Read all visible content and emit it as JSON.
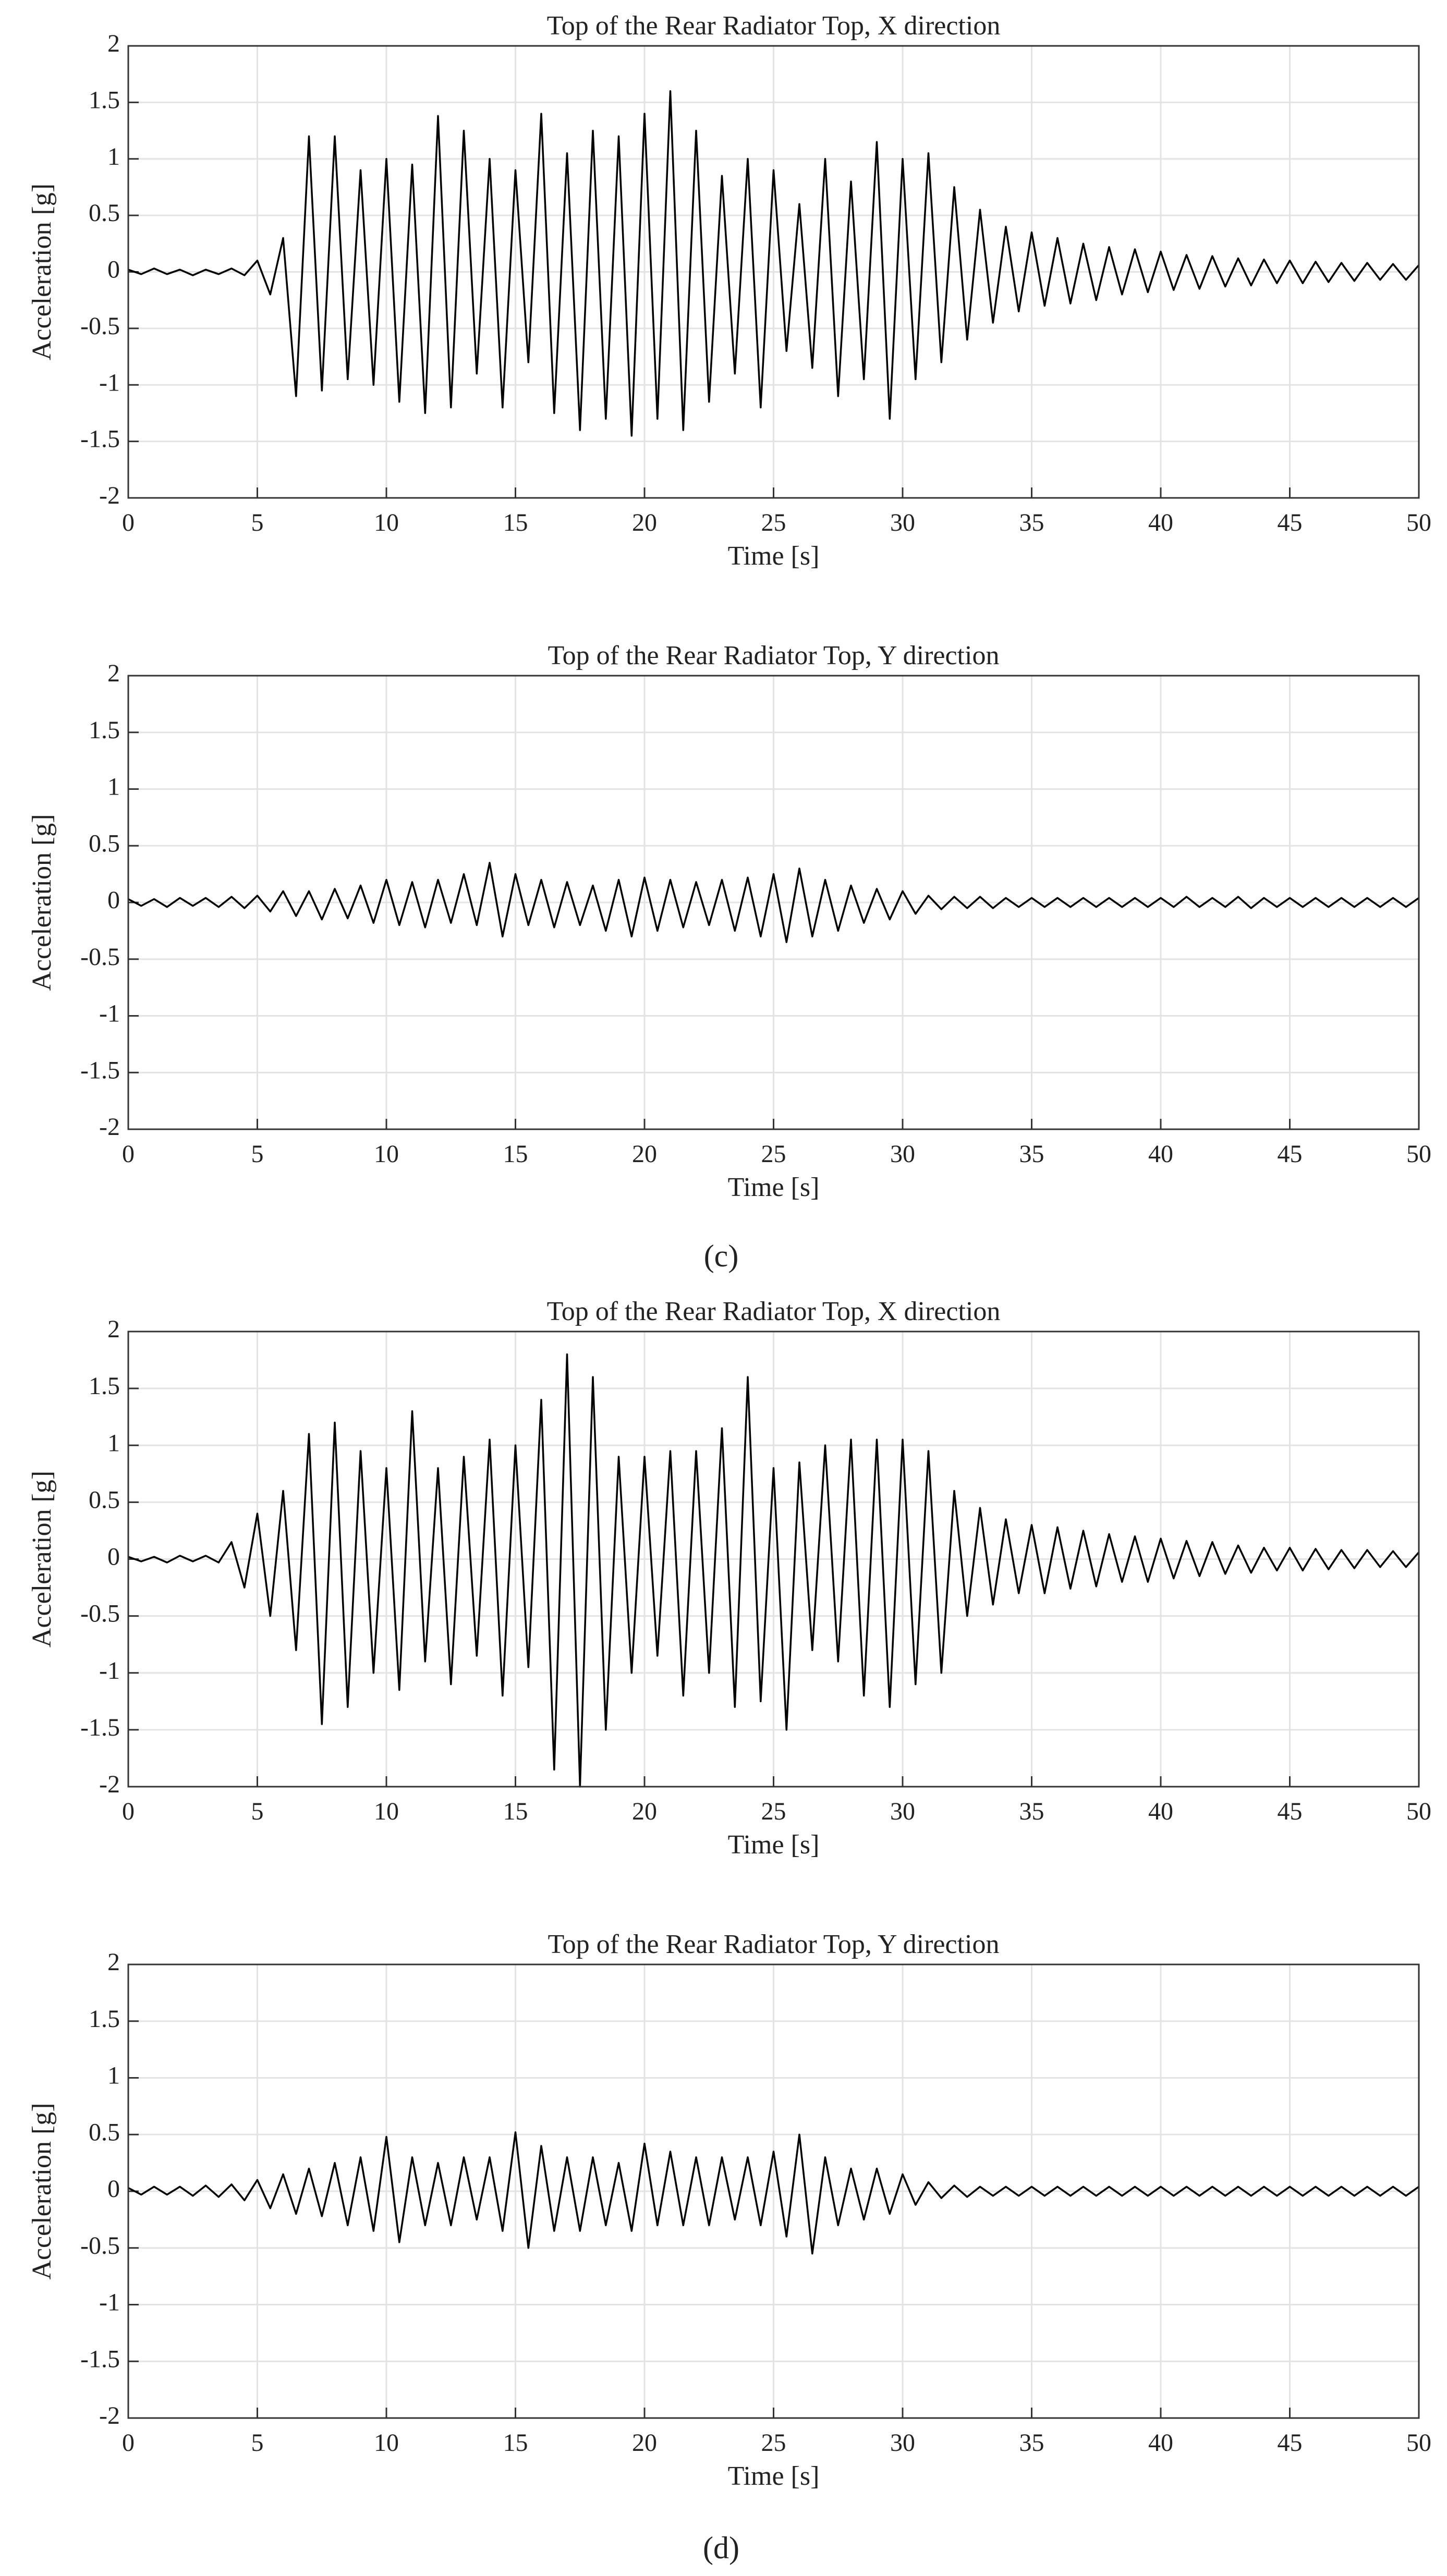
{
  "chart_data": [
    {
      "type": "line",
      "title": "Top of the Rear Radiator Top, X direction",
      "xlabel": "Time [s]",
      "ylabel": "Acceleration [g]",
      "x": [
        0,
        0.5,
        1,
        1.5,
        2,
        2.5,
        3,
        3.5,
        4,
        4.5,
        5,
        5.5,
        6,
        6.5,
        7,
        7.5,
        8,
        8.5,
        9,
        9.5,
        10,
        10.5,
        11,
        11.5,
        12,
        12.5,
        13,
        13.5,
        14,
        14.5,
        15,
        15.5,
        16,
        16.5,
        17,
        17.5,
        18,
        18.5,
        19,
        19.5,
        20,
        20.5,
        21,
        21.5,
        22,
        22.5,
        23,
        23.5,
        24,
        24.5,
        25,
        25.5,
        26,
        26.5,
        27,
        27.5,
        28,
        28.5,
        29,
        29.5,
        30,
        30.5,
        31,
        31.5,
        32,
        32.5,
        33,
        33.5,
        34,
        34.5,
        35,
        35.5,
        36,
        36.5,
        37,
        37.5,
        38,
        38.5,
        39,
        39.5,
        40,
        40.5,
        41,
        41.5,
        42,
        42.5,
        43,
        43.5,
        44,
        44.5,
        45,
        45.5,
        46,
        46.5,
        47,
        47.5,
        48,
        48.5,
        49,
        49.5,
        50
      ],
      "values": [
        0.02,
        -0.02,
        0.03,
        -0.02,
        0.02,
        -0.03,
        0.02,
        -0.02,
        0.03,
        -0.03,
        0.1,
        -0.2,
        0.3,
        -1.1,
        1.2,
        -1.05,
        1.2,
        -0.95,
        0.9,
        -1.0,
        1.0,
        -1.15,
        0.95,
        -1.25,
        1.38,
        -1.2,
        1.25,
        -0.9,
        1.0,
        -1.2,
        0.9,
        -0.8,
        1.4,
        -1.25,
        1.05,
        -1.4,
        1.25,
        -1.3,
        1.2,
        -1.45,
        1.4,
        -1.3,
        1.6,
        -1.4,
        1.25,
        -1.15,
        0.85,
        -0.9,
        1.0,
        -1.2,
        0.9,
        -0.7,
        0.6,
        -0.85,
        1.0,
        -1.1,
        0.8,
        -0.95,
        1.15,
        -1.3,
        1.0,
        -0.95,
        1.05,
        -0.8,
        0.75,
        -0.6,
        0.55,
        -0.45,
        0.4,
        -0.35,
        0.35,
        -0.3,
        0.3,
        -0.28,
        0.25,
        -0.25,
        0.22,
        -0.2,
        0.2,
        -0.18,
        0.18,
        -0.16,
        0.15,
        -0.15,
        0.14,
        -0.13,
        0.12,
        -0.12,
        0.11,
        -0.1,
        0.1,
        -0.1,
        0.09,
        -0.09,
        0.08,
        -0.08,
        0.08,
        -0.07,
        0.07,
        -0.07,
        0.06
      ],
      "color": "#000000",
      "xlim": [
        0,
        50
      ],
      "ylim": [
        -2,
        2
      ],
      "xticks": [
        0,
        5,
        10,
        15,
        20,
        25,
        30,
        35,
        40,
        45,
        50
      ],
      "yticks": [
        -2,
        -1.5,
        -1,
        -0.5,
        0,
        0.5,
        1,
        1.5,
        2
      ],
      "grid": true
    },
    {
      "type": "line",
      "title": "Top of the Rear Radiator Top, Y direction",
      "xlabel": "Time [s]",
      "ylabel": "Acceleration [g]",
      "x": [
        0,
        0.5,
        1,
        1.5,
        2,
        2.5,
        3,
        3.5,
        4,
        4.5,
        5,
        5.5,
        6,
        6.5,
        7,
        7.5,
        8,
        8.5,
        9,
        9.5,
        10,
        10.5,
        11,
        11.5,
        12,
        12.5,
        13,
        13.5,
        14,
        14.5,
        15,
        15.5,
        16,
        16.5,
        17,
        17.5,
        18,
        18.5,
        19,
        19.5,
        20,
        20.5,
        21,
        21.5,
        22,
        22.5,
        23,
        23.5,
        24,
        24.5,
        25,
        25.5,
        26,
        26.5,
        27,
        27.5,
        28,
        28.5,
        29,
        29.5,
        30,
        30.5,
        31,
        31.5,
        32,
        32.5,
        33,
        33.5,
        34,
        34.5,
        35,
        35.5,
        36,
        36.5,
        37,
        37.5,
        38,
        38.5,
        39,
        39.5,
        40,
        40.5,
        41,
        41.5,
        42,
        42.5,
        43,
        43.5,
        44,
        44.5,
        45,
        45.5,
        46,
        46.5,
        47,
        47.5,
        48,
        48.5,
        49,
        49.5,
        50
      ],
      "values": [
        0.03,
        -0.03,
        0.03,
        -0.04,
        0.04,
        -0.03,
        0.04,
        -0.04,
        0.05,
        -0.05,
        0.06,
        -0.08,
        0.1,
        -0.12,
        0.1,
        -0.15,
        0.12,
        -0.14,
        0.15,
        -0.18,
        0.2,
        -0.2,
        0.18,
        -0.22,
        0.2,
        -0.18,
        0.25,
        -0.2,
        0.35,
        -0.3,
        0.25,
        -0.2,
        0.2,
        -0.22,
        0.18,
        -0.2,
        0.15,
        -0.25,
        0.2,
        -0.3,
        0.22,
        -0.25,
        0.2,
        -0.22,
        0.18,
        -0.2,
        0.2,
        -0.25,
        0.22,
        -0.3,
        0.25,
        -0.35,
        0.3,
        -0.3,
        0.2,
        -0.25,
        0.15,
        -0.18,
        0.12,
        -0.15,
        0.1,
        -0.1,
        0.06,
        -0.06,
        0.05,
        -0.05,
        0.05,
        -0.05,
        0.04,
        -0.04,
        0.04,
        -0.04,
        0.04,
        -0.04,
        0.04,
        -0.04,
        0.04,
        -0.04,
        0.04,
        -0.04,
        0.04,
        -0.04,
        0.05,
        -0.04,
        0.04,
        -0.04,
        0.05,
        -0.05,
        0.04,
        -0.04,
        0.04,
        -0.04,
        0.04,
        -0.04,
        0.04,
        -0.04,
        0.04,
        -0.04,
        0.04,
        -0.04,
        0.04
      ],
      "color": "#000000",
      "xlim": [
        0,
        50
      ],
      "ylim": [
        -2,
        2
      ],
      "xticks": [
        0,
        5,
        10,
        15,
        20,
        25,
        30,
        35,
        40,
        45,
        50
      ],
      "yticks": [
        -2,
        -1.5,
        -1,
        -0.5,
        0,
        0.5,
        1,
        1.5,
        2
      ],
      "grid": true
    },
    {
      "type": "line",
      "title": "Top of the Rear Radiator Top, X direction",
      "xlabel": "Time [s]",
      "ylabel": "Acceleration [g]",
      "x": [
        0,
        0.5,
        1,
        1.5,
        2,
        2.5,
        3,
        3.5,
        4,
        4.5,
        5,
        5.5,
        6,
        6.5,
        7,
        7.5,
        8,
        8.5,
        9,
        9.5,
        10,
        10.5,
        11,
        11.5,
        12,
        12.5,
        13,
        13.5,
        14,
        14.5,
        15,
        15.5,
        16,
        16.5,
        17,
        17.5,
        18,
        18.5,
        19,
        19.5,
        20,
        20.5,
        21,
        21.5,
        22,
        22.5,
        23,
        23.5,
        24,
        24.5,
        25,
        25.5,
        26,
        26.5,
        27,
        27.5,
        28,
        28.5,
        29,
        29.5,
        30,
        30.5,
        31,
        31.5,
        32,
        32.5,
        33,
        33.5,
        34,
        34.5,
        35,
        35.5,
        36,
        36.5,
        37,
        37.5,
        38,
        38.5,
        39,
        39.5,
        40,
        40.5,
        41,
        41.5,
        42,
        42.5,
        43,
        43.5,
        44,
        44.5,
        45,
        45.5,
        46,
        46.5,
        47,
        47.5,
        48,
        48.5,
        49,
        49.5,
        50
      ],
      "values": [
        0.02,
        -0.02,
        0.02,
        -0.03,
        0.03,
        -0.02,
        0.03,
        -0.03,
        0.15,
        -0.25,
        0.4,
        -0.5,
        0.6,
        -0.8,
        1.1,
        -1.45,
        1.2,
        -1.3,
        0.95,
        -1.0,
        0.8,
        -1.15,
        1.3,
        -0.9,
        0.8,
        -1.1,
        0.9,
        -0.85,
        1.05,
        -1.2,
        1.0,
        -0.95,
        1.4,
        -1.85,
        1.8,
        -2.0,
        1.6,
        -1.5,
        0.9,
        -1.0,
        0.9,
        -0.85,
        0.95,
        -1.2,
        0.95,
        -1.0,
        1.15,
        -1.3,
        1.6,
        -1.25,
        0.8,
        -1.5,
        0.85,
        -0.8,
        1.0,
        -0.9,
        1.05,
        -1.2,
        1.05,
        -1.3,
        1.05,
        -1.1,
        0.95,
        -1.0,
        0.6,
        -0.5,
        0.45,
        -0.4,
        0.35,
        -0.3,
        0.3,
        -0.3,
        0.28,
        -0.26,
        0.25,
        -0.24,
        0.22,
        -0.2,
        0.2,
        -0.2,
        0.18,
        -0.17,
        0.16,
        -0.15,
        0.15,
        -0.13,
        0.12,
        -0.12,
        0.1,
        -0.1,
        0.1,
        -0.1,
        0.09,
        -0.09,
        0.08,
        -0.08,
        0.08,
        -0.07,
        0.07,
        -0.07,
        0.06
      ],
      "color": "#000000",
      "xlim": [
        0,
        50
      ],
      "ylim": [
        -2,
        2
      ],
      "xticks": [
        0,
        5,
        10,
        15,
        20,
        25,
        30,
        35,
        40,
        45,
        50
      ],
      "yticks": [
        -2,
        -1.5,
        -1,
        -0.5,
        0,
        0.5,
        1,
        1.5,
        2
      ],
      "grid": true
    },
    {
      "type": "line",
      "title": "Top of the Rear Radiator Top, Y direction",
      "xlabel": "Time [s]",
      "ylabel": "Acceleration [g]",
      "x": [
        0,
        0.5,
        1,
        1.5,
        2,
        2.5,
        3,
        3.5,
        4,
        4.5,
        5,
        5.5,
        6,
        6.5,
        7,
        7.5,
        8,
        8.5,
        9,
        9.5,
        10,
        10.5,
        11,
        11.5,
        12,
        12.5,
        13,
        13.5,
        14,
        14.5,
        15,
        15.5,
        16,
        16.5,
        17,
        17.5,
        18,
        18.5,
        19,
        19.5,
        20,
        20.5,
        21,
        21.5,
        22,
        22.5,
        23,
        23.5,
        24,
        24.5,
        25,
        25.5,
        26,
        26.5,
        27,
        27.5,
        28,
        28.5,
        29,
        29.5,
        30,
        30.5,
        31,
        31.5,
        32,
        32.5,
        33,
        33.5,
        34,
        34.5,
        35,
        35.5,
        36,
        36.5,
        37,
        37.5,
        38,
        38.5,
        39,
        39.5,
        40,
        40.5,
        41,
        41.5,
        42,
        42.5,
        43,
        43.5,
        44,
        44.5,
        45,
        45.5,
        46,
        46.5,
        47,
        47.5,
        48,
        48.5,
        49,
        49.5,
        50
      ],
      "values": [
        0.03,
        -0.03,
        0.04,
        -0.03,
        0.04,
        -0.04,
        0.05,
        -0.05,
        0.06,
        -0.08,
        0.1,
        -0.15,
        0.15,
        -0.2,
        0.2,
        -0.22,
        0.25,
        -0.3,
        0.3,
        -0.35,
        0.48,
        -0.45,
        0.3,
        -0.3,
        0.25,
        -0.3,
        0.3,
        -0.25,
        0.3,
        -0.35,
        0.52,
        -0.5,
        0.4,
        -0.35,
        0.3,
        -0.35,
        0.3,
        -0.3,
        0.25,
        -0.35,
        0.42,
        -0.3,
        0.35,
        -0.3,
        0.3,
        -0.3,
        0.3,
        -0.25,
        0.3,
        -0.3,
        0.35,
        -0.4,
        0.5,
        -0.55,
        0.3,
        -0.3,
        0.2,
        -0.25,
        0.2,
        -0.2,
        0.15,
        -0.12,
        0.08,
        -0.06,
        0.05,
        -0.05,
        0.04,
        -0.04,
        0.04,
        -0.04,
        0.04,
        -0.04,
        0.04,
        -0.04,
        0.04,
        -0.04,
        0.04,
        -0.04,
        0.04,
        -0.04,
        0.04,
        -0.04,
        0.04,
        -0.04,
        0.04,
        -0.04,
        0.04,
        -0.04,
        0.04,
        -0.04,
        0.04,
        -0.04,
        0.04,
        -0.04,
        0.04,
        -0.04,
        0.04,
        -0.04,
        0.04,
        -0.04,
        0.04
      ],
      "color": "#000000",
      "xlim": [
        0,
        50
      ],
      "ylim": [
        -2,
        2
      ],
      "xticks": [
        0,
        5,
        10,
        15,
        20,
        25,
        30,
        35,
        40,
        45,
        50
      ],
      "yticks": [
        -2,
        -1.5,
        -1,
        -0.5,
        0,
        0.5,
        1,
        1.5,
        2
      ],
      "grid": true
    }
  ],
  "captions": [
    "(c)",
    "(d)"
  ]
}
